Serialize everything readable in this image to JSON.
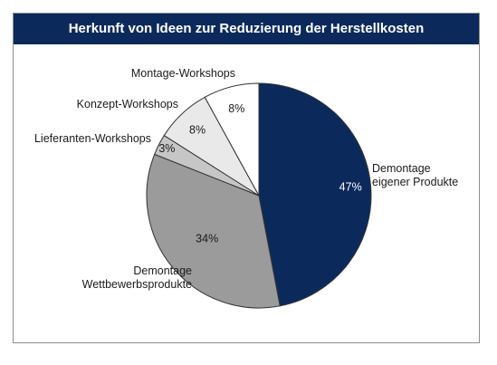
{
  "chart_data": {
    "type": "pie",
    "title": "Herkunft von Ideen zur Reduzierung der Herstellkosten",
    "slices": [
      {
        "label": "Demontage eigener Produkte",
        "value": 47,
        "value_label": "47%",
        "color": "#0b2a5b"
      },
      {
        "label": "Demontage Wettbewerbsprodukte",
        "value": 34,
        "value_label": "34%",
        "color": "#9b9b9b"
      },
      {
        "label": "Lieferanten-Workshops",
        "value": 3,
        "value_label": "3%",
        "color": "#c6c6c6"
      },
      {
        "label": "Konzept-Workshops",
        "value": 8,
        "value_label": "8%",
        "color": "#e9e9e9"
      },
      {
        "label": "Montage-Workshops",
        "value": 8,
        "value_label": "8%",
        "color": "#ffffff"
      }
    ],
    "label_lines": [
      [
        "Demontage",
        "eigener Produkte"
      ],
      [
        "Demontage",
        "Wettbewerbsprodukte"
      ],
      [
        "Lieferanten-Workshops"
      ],
      [
        "Konzept-Workshops"
      ],
      [
        "Montage-Workshops"
      ]
    ],
    "start": "12 o'clock",
    "direction": "clockwise"
  }
}
